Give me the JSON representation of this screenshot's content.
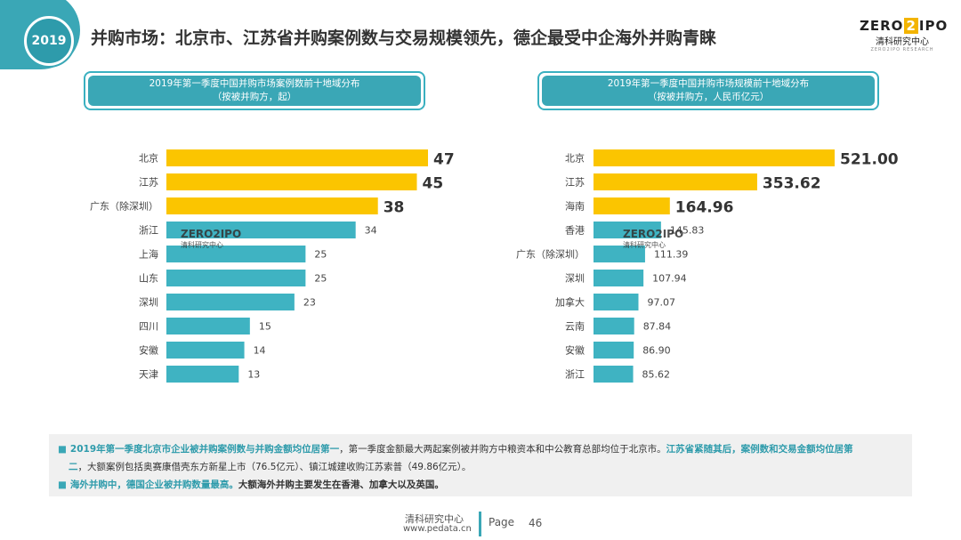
{
  "header": {
    "year_badge": "2019",
    "title": "并购市场：北京市、江苏省并购案例数与交易规模领先，德企最受中企海外并购青睐",
    "logo": {
      "part1": "ZERO",
      "part2": "2",
      "part3": "IPO",
      "sub": "清科研究中心",
      "tiny": "ZERO2IPO RESEARCH"
    }
  },
  "watermark": {
    "text": "ZERO2IPO",
    "sub": "清科研究中心"
  },
  "colors": {
    "top3": "#fbc500",
    "rest": "#3fb3c2",
    "accent": "#3aa7b6"
  },
  "chart_data": [
    {
      "type": "bar",
      "title_line1": "2019年第一季度中国并购市场案例数前十地域分布",
      "title_line2": "（按被并购方，起）",
      "categories": [
        "北京",
        "江苏",
        "广东（除深圳）",
        "浙江",
        "上海",
        "山东",
        "深圳",
        "四川",
        "安徽",
        "天津"
      ],
      "values": [
        47,
        45,
        38,
        34,
        25,
        25,
        23,
        15,
        14,
        13
      ],
      "value_labels": [
        "47",
        "45",
        "38",
        "34",
        "25",
        "25",
        "23",
        "15",
        "14",
        "13"
      ],
      "highlight_count": 3,
      "orientation": "horizontal"
    },
    {
      "type": "bar",
      "title_line1": "2019年第一季度中国并购市场规模前十地域分布",
      "title_line2": "（按被并购方，人民币亿元）",
      "categories": [
        "北京",
        "江苏",
        "海南",
        "香港",
        "广东（除深圳）",
        "深圳",
        "加拿大",
        "云南",
        "安徽",
        "浙江"
      ],
      "values": [
        521.0,
        353.62,
        164.96,
        145.83,
        111.39,
        107.94,
        97.07,
        87.84,
        86.9,
        85.62
      ],
      "value_labels": [
        "521.00",
        "353.62",
        "164.96",
        "145.83",
        "111.39",
        "107.94",
        "97.07",
        "87.84",
        "86.90",
        "85.62"
      ],
      "highlight_count": 3,
      "orientation": "horizontal"
    }
  ],
  "notes": {
    "line1_hl": "2019年第一季度北京市企业被并购案例数与并购金额均位居第一",
    "line1_text": "，第一季度金额最大两起案例被并购方中粮资本和中公教育总部均位于北京市。",
    "line1_hl2": "江苏省紧随其后，案例数和交易金额均位居第",
    "line2_hl": "二",
    "line2_text": "，大额案例包括奥赛康借壳东方新星上市（76.5亿元）、镇江城建收购江苏索普（49.86亿元）。",
    "line3_hl": "海外并购中，德国企业被并购数量最高。",
    "line3_text": "大额海外并购主要发生在香港、加拿大以及英国。"
  },
  "footer": {
    "org": "清科研究中心",
    "url": "www.pedata.cn",
    "page_label": "Page",
    "page_num": "46"
  }
}
